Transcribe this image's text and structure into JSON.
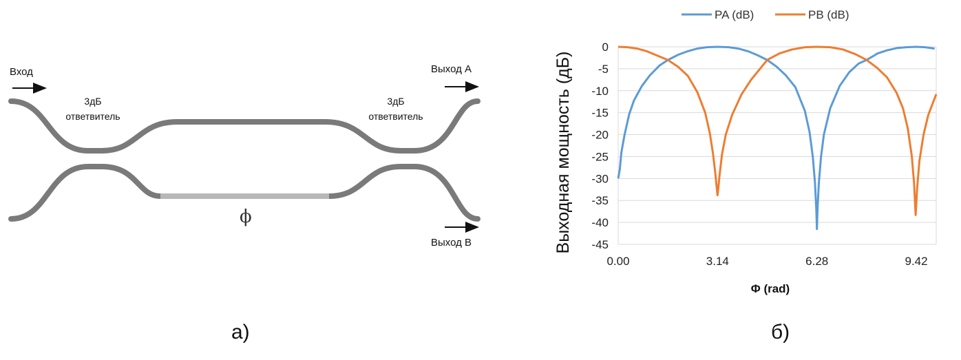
{
  "diagram": {
    "input_label": "Вход",
    "output_a_label": "Выход A",
    "output_b_label": "Выход B",
    "coupler_left": [
      "3дБ",
      "ответвитель"
    ],
    "coupler_right": [
      "3дБ",
      "ответвитель"
    ],
    "phase_symbol": "ϕ",
    "waveguide_color": "#7a7a7a",
    "phase_section_color": "#b8b8b8",
    "panel_label": "а)"
  },
  "chart_panel_label": "б)",
  "chart_data": {
    "type": "line",
    "xlabel": "Φ (rad)",
    "ylabel": "Выходная мощность (дБ)",
    "xlim": [
      0,
      10.05
    ],
    "ylim": [
      -45,
      0
    ],
    "xticks": [
      "0.00",
      "3.14",
      "6.28",
      "9.42"
    ],
    "xtick_values": [
      0,
      3.14,
      6.28,
      9.42
    ],
    "yticks": [
      "0",
      "-5",
      "-10",
      "-15",
      "-20",
      "-25",
      "-30",
      "-35",
      "-40",
      "-45"
    ],
    "ytick_values": [
      0,
      -5,
      -10,
      -15,
      -20,
      -25,
      -30,
      -35,
      -40,
      -45
    ],
    "grid": true,
    "legend_position": "top",
    "series": [
      {
        "name": "PA (dB)",
        "color": "#5b9bd5",
        "x": [
          0.0,
          0.05,
          0.1,
          0.2,
          0.35,
          0.5,
          0.75,
          1.0,
          1.3,
          1.57,
          1.9,
          2.2,
          2.5,
          2.8,
          3.14,
          3.5,
          3.8,
          4.1,
          4.4,
          4.71,
          5.0,
          5.3,
          5.6,
          5.9,
          6.05,
          6.15,
          6.22,
          6.26,
          6.28,
          6.3,
          6.34,
          6.41,
          6.5,
          6.7,
          7.0,
          7.3,
          7.6,
          7.85,
          8.2,
          8.5,
          8.8,
          9.1,
          9.42,
          9.7,
          10.0
        ],
        "y": [
          -30,
          -28,
          -24.1,
          -20.1,
          -15.3,
          -12.2,
          -8.9,
          -6.5,
          -4.3,
          -3.0,
          -1.8,
          -1.0,
          -0.4,
          -0.1,
          0,
          -0.1,
          -0.4,
          -1.0,
          -1.9,
          -3.0,
          -4.5,
          -6.5,
          -9.2,
          -14.6,
          -19.5,
          -25,
          -31,
          -37,
          -41.5,
          -37,
          -31,
          -25,
          -20,
          -14,
          -8.9,
          -5.8,
          -3.8,
          -3.0,
          -1.5,
          -0.8,
          -0.3,
          -0.1,
          0,
          -0.1,
          -0.4
        ]
      },
      {
        "name": "PB (dB)",
        "color": "#ed7d31",
        "x": [
          0.0,
          0.3,
          0.6,
          0.9,
          1.2,
          1.57,
          1.9,
          2.2,
          2.5,
          2.75,
          2.9,
          3.0,
          3.08,
          3.12,
          3.14,
          3.16,
          3.2,
          3.28,
          3.4,
          3.6,
          3.9,
          4.2,
          4.71,
          5.1,
          5.5,
          5.9,
          6.28,
          6.7,
          7.1,
          7.5,
          7.85,
          8.2,
          8.5,
          8.8,
          9.0,
          9.15,
          9.28,
          9.35,
          9.4,
          9.45,
          9.52,
          9.65,
          9.8,
          10.05
        ],
        "y": [
          0,
          -0.1,
          -0.4,
          -1.0,
          -1.9,
          -3.0,
          -4.6,
          -6.6,
          -10.3,
          -15.0,
          -19.8,
          -24.5,
          -29.5,
          -32.5,
          -33.8,
          -32.5,
          -29.5,
          -24.5,
          -20.0,
          -15.5,
          -10.8,
          -7.5,
          -3.0,
          -1.5,
          -0.6,
          -0.1,
          0,
          -0.1,
          -0.6,
          -1.7,
          -3.0,
          -4.9,
          -7.0,
          -10.5,
          -14.0,
          -18.5,
          -25.0,
          -31.0,
          -38.3,
          -32.0,
          -26.0,
          -20.0,
          -15.5,
          -10.8
        ]
      }
    ]
  }
}
